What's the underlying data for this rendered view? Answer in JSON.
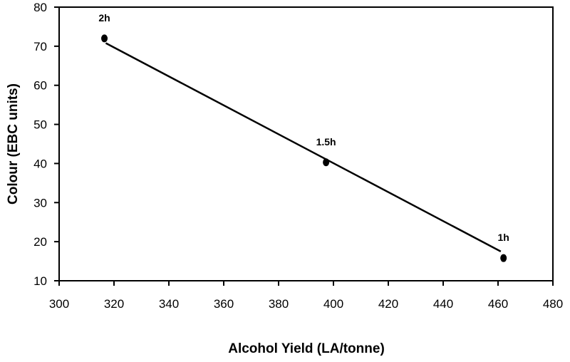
{
  "chart_data": {
    "type": "scatter",
    "title": "",
    "xlabel": "Alcohol Yield (LA/tonne)",
    "ylabel": "Colour (EBC units)",
    "xlim": [
      300,
      480
    ],
    "ylim": [
      10,
      80
    ],
    "x_ticks": [
      "300",
      "320",
      "340",
      "360",
      "380",
      "400",
      "420",
      "440",
      "460",
      "480"
    ],
    "y_ticks": [
      "10",
      "20",
      "30",
      "40",
      "50",
      "60",
      "70",
      "80"
    ],
    "grid": false,
    "legend": "none",
    "points": [
      {
        "x": 316.5,
        "y": 72,
        "label": "2h"
      },
      {
        "x": 397.3,
        "y": 40.3,
        "label": "1.5h"
      },
      {
        "x": 462,
        "y": 15.8,
        "label": "1h"
      }
    ],
    "trendline": {
      "x": [
        317,
        461
      ],
      "y": [
        70.8,
        17.5
      ]
    }
  }
}
